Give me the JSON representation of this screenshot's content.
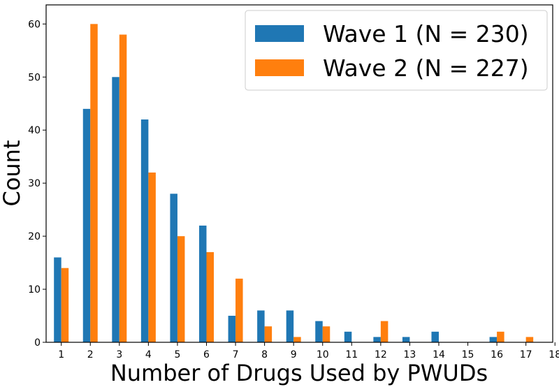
{
  "chart_data": {
    "type": "bar",
    "title": "",
    "xlabel": "Number of Drugs Used by PWUDs",
    "ylabel": "Count",
    "categories": [
      "1",
      "2",
      "3",
      "4",
      "5",
      "6",
      "7",
      "8",
      "9",
      "10",
      "11",
      "12",
      "13",
      "14",
      "15",
      "16",
      "17",
      "18"
    ],
    "series": [
      {
        "name": "Wave 1 (N = 230)",
        "color": "#1f77b4",
        "values": [
          16,
          44,
          50,
          42,
          28,
          22,
          5,
          6,
          6,
          4,
          2,
          1,
          1,
          2,
          0,
          1,
          0,
          0
        ]
      },
      {
        "name": "Wave 2 (N = 227)",
        "color": "#ff7f0e",
        "values": [
          14,
          60,
          58,
          32,
          20,
          17,
          12,
          3,
          1,
          3,
          0,
          4,
          0,
          0,
          0,
          2,
          1,
          0
        ]
      }
    ],
    "ylim": [
      0,
      63.6
    ],
    "yticks": [
      0,
      10,
      20,
      30,
      40,
      50,
      60
    ],
    "grid": false,
    "legend_position": "top-right"
  }
}
